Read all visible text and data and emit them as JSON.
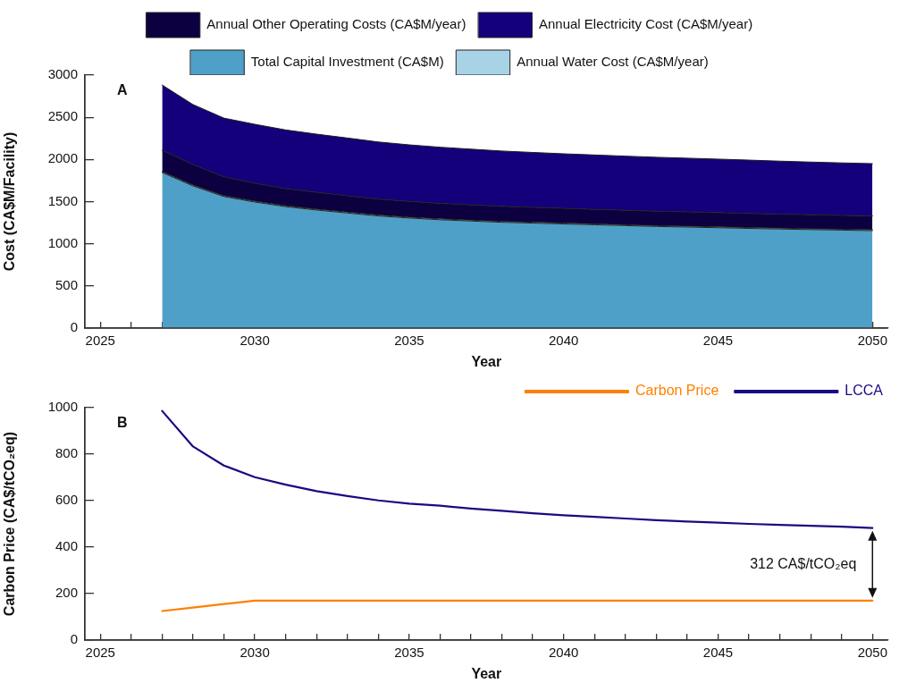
{
  "chart_data": [
    {
      "type": "area",
      "stacked": true,
      "ylabel": "Cost (CA$M/Facility)",
      "xlabel": "Year",
      "annotations": [
        "A"
      ],
      "legend": "top",
      "grid": false,
      "marker": "none",
      "x": [
        2027,
        2028,
        2029,
        2030,
        2031,
        2032,
        2033,
        2034,
        2035,
        2036,
        2037,
        2038,
        2039,
        2040,
        2041,
        2042,
        2043,
        2044,
        2045,
        2046,
        2047,
        2048,
        2049,
        2050
      ],
      "xlim": [
        2024.5,
        2050.5
      ],
      "xticks": [
        2025,
        {
          "value": 2026,
          "label": null
        },
        {
          "value": 2027,
          "label": null
        },
        {
          "value": 2028,
          "label": null
        },
        {
          "value": 2029,
          "label": null
        },
        2030,
        {
          "value": 2031,
          "label": null
        },
        {
          "value": 2032,
          "label": null
        },
        {
          "value": 2033,
          "label": null
        },
        {
          "value": 2034,
          "label": null
        },
        2035,
        {
          "value": 2036,
          "label": null
        },
        {
          "value": 2037,
          "label": null
        },
        {
          "value": 2038,
          "label": null
        },
        {
          "value": 2039,
          "label": null
        },
        2040,
        {
          "value": 2041,
          "label": null
        },
        {
          "value": 2042,
          "label": null
        },
        {
          "value": 2043,
          "label": null
        },
        {
          "value": 2044,
          "label": null
        },
        2045,
        {
          "value": 2046,
          "label": null
        },
        {
          "value": 2047,
          "label": null
        },
        {
          "value": 2048,
          "label": null
        },
        {
          "value": 2049,
          "label": null
        },
        2050
      ],
      "ylim": [
        0,
        3000
      ],
      "yticks": [
        0,
        500,
        1000,
        1500,
        2000,
        2500,
        3000
      ],
      "series": [
        {
          "name": "Total Capital Investment (CA$M)",
          "color": "#4fa0c8",
          "values": [
            1845,
            1686,
            1560,
            1495,
            1440,
            1400,
            1365,
            1330,
            1305,
            1285,
            1270,
            1255,
            1245,
            1235,
            1225,
            1215,
            1205,
            1198,
            1190,
            1182,
            1175,
            1168,
            1162,
            1156
          ]
        },
        {
          "name": "Annual Water Cost (CA$M/year)",
          "color": "#a8d3e6",
          "values": [
            10,
            10,
            10,
            10,
            10,
            10,
            10,
            10,
            10,
            10,
            10,
            10,
            10,
            10,
            10,
            10,
            10,
            10,
            10,
            10,
            10,
            10,
            10,
            10
          ]
        },
        {
          "name": "Annual Other Operating Costs (CA$M/year)",
          "color": "#0d0040",
          "values": [
            255,
            245,
            225,
            212,
            205,
            200,
            195,
            190,
            187,
            184,
            181,
            179,
            177,
            175,
            173,
            172,
            171,
            170,
            169,
            168,
            167,
            166,
            165,
            165
          ]
        },
        {
          "name": "Annual Electricity Cost (CA$M/year)",
          "color": "#14007a",
          "values": [
            773,
            710,
            695,
            700,
            695,
            690,
            684,
            677,
            671,
            666,
            661,
            656,
            651,
            647,
            645,
            642,
            640,
            637,
            635,
            632,
            628,
            625,
            622,
            619
          ]
        }
      ]
    },
    {
      "type": "line",
      "ylabel": "Carbon Price (CA$/tCO₂eq)",
      "xlabel": "Year",
      "legend": "top right",
      "grid": false,
      "marker": "none",
      "line_style": "solid",
      "annotations": [
        "B",
        "312 CA$/tCO₂eq"
      ],
      "x": [
        2027,
        2028,
        2029,
        2030,
        2031,
        2032,
        2033,
        2034,
        2035,
        2036,
        2037,
        2038,
        2039,
        2040,
        2041,
        2042,
        2043,
        2044,
        2045,
        2046,
        2047,
        2048,
        2049,
        2050
      ],
      "xlim": [
        2024.5,
        2050.5
      ],
      "xticks": [
        2025,
        {
          "value": 2026,
          "label": null
        },
        {
          "value": 2027,
          "label": null
        },
        {
          "value": 2028,
          "label": null
        },
        {
          "value": 2029,
          "label": null
        },
        2030,
        {
          "value": 2031,
          "label": null
        },
        {
          "value": 2032,
          "label": null
        },
        {
          "value": 2033,
          "label": null
        },
        {
          "value": 2034,
          "label": null
        },
        2035,
        {
          "value": 2036,
          "label": null
        },
        {
          "value": 2037,
          "label": null
        },
        {
          "value": 2038,
          "label": null
        },
        {
          "value": 2039,
          "label": null
        },
        2040,
        {
          "value": 2041,
          "label": null
        },
        {
          "value": 2042,
          "label": null
        },
        {
          "value": 2043,
          "label": null
        },
        {
          "value": 2044,
          "label": null
        },
        2045,
        {
          "value": 2046,
          "label": null
        },
        {
          "value": 2047,
          "label": null
        },
        {
          "value": 2048,
          "label": null
        },
        {
          "value": 2049,
          "label": null
        },
        2050
      ],
      "ylim": [
        0,
        1000
      ],
      "yticks": [
        0,
        200,
        400,
        600,
        800,
        1000
      ],
      "series": [
        {
          "name": "Carbon Price",
          "color": "#ff8000",
          "values": [
            125,
            140,
            155,
            170,
            170,
            170,
            170,
            170,
            170,
            170,
            170,
            170,
            170,
            170,
            170,
            170,
            170,
            170,
            170,
            170,
            170,
            170,
            170,
            170
          ]
        },
        {
          "name": "LCCA",
          "color": "#1a0a80",
          "values": [
            986,
            833,
            751,
            701,
            669,
            641,
            620,
            601,
            587,
            578,
            566,
            556,
            546,
            537,
            530,
            523,
            516,
            510,
            505,
            500,
            496,
            492,
            488,
            482
          ]
        }
      ]
    }
  ]
}
